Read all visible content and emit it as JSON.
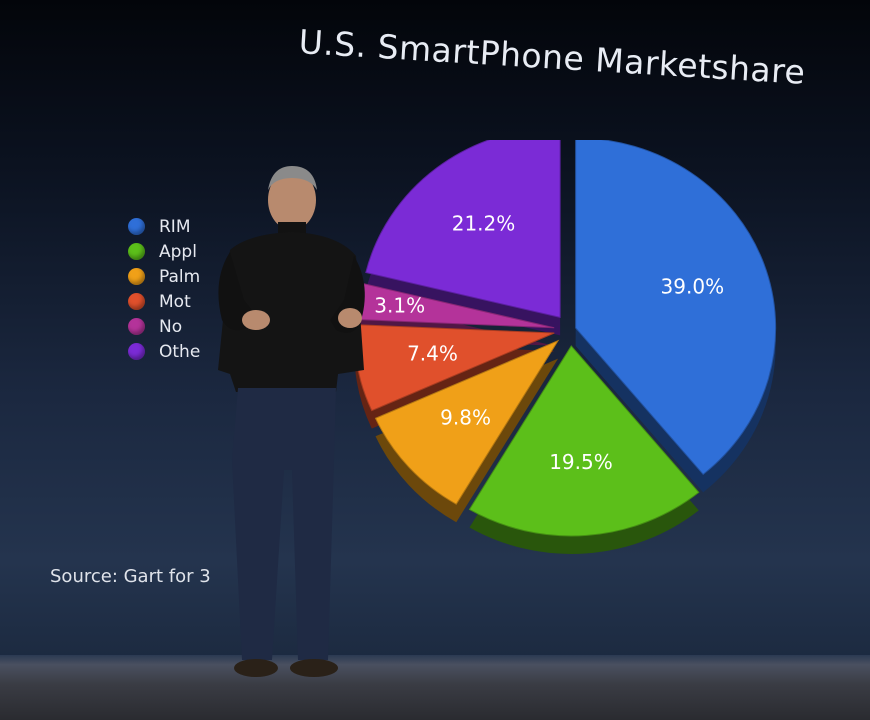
{
  "slide": {
    "title": "U.S. SmartPhone Marketshare",
    "source": "Source: Gart     for   3"
  },
  "legend": {
    "items": [
      {
        "label": "RIM",
        "color": "#2f6fd8"
      },
      {
        "label": "Appl",
        "color": "#5cbf1a"
      },
      {
        "label": "Palm",
        "color": "#f0a018"
      },
      {
        "label": "Mot",
        "color": "#e0502c"
      },
      {
        "label": "No",
        "color": "#b4339a"
      },
      {
        "label": "Othe",
        "color": "#7b2bd6"
      }
    ]
  },
  "chart_data": {
    "type": "pie",
    "title": "U.S. SmartPhone Marketshare",
    "slices": [
      {
        "label": "RIM",
        "value": 39.0,
        "display": "39.0%",
        "color": "#2f6fd8"
      },
      {
        "label": "Appl",
        "value": 19.5,
        "display": "19.5%",
        "color": "#5cbf1a"
      },
      {
        "label": "Palm",
        "value": 9.8,
        "display": "9.8%",
        "color": "#f0a018"
      },
      {
        "label": "Mot",
        "value": 7.4,
        "display": "7.4%",
        "color": "#e0502c"
      },
      {
        "label": "No",
        "value": 3.1,
        "display": "3.1%",
        "color": "#b4339a"
      },
      {
        "label": "Othe",
        "value": 21.2,
        "display": "21.2%",
        "color": "#7b2bd6"
      }
    ],
    "legend_position": "left"
  }
}
